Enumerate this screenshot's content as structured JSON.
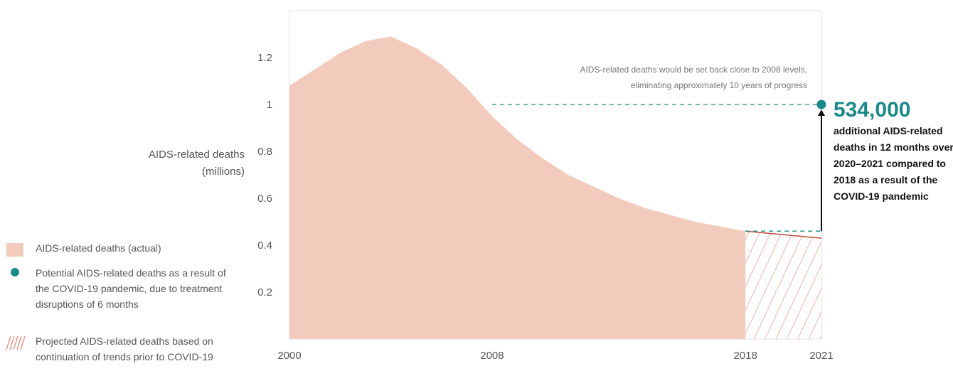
{
  "chart_data": {
    "type": "area",
    "ylabel_lines": [
      "AIDS-related deaths",
      "(millions)"
    ],
    "ylim": [
      0,
      1.4
    ],
    "xlim": [
      2000,
      2021
    ],
    "y_ticks": [
      "0.2",
      "0.4",
      "0.6",
      "0.8",
      "1",
      "1.2"
    ],
    "x_ticks": [
      "2000",
      "2008",
      "2018",
      "2021"
    ],
    "grid": false,
    "colors": {
      "actual": "#f2cbbd",
      "projected": "#e8897a",
      "potential": "#1a8a88",
      "arrow": "#111111"
    },
    "series": [
      {
        "name": "AIDS-related deaths (actual)",
        "x": [
          2000,
          2001,
          2002,
          2003,
          2004,
          2005,
          2006,
          2007,
          2008,
          2009,
          2010,
          2011,
          2012,
          2013,
          2014,
          2015,
          2016,
          2017,
          2018
        ],
        "values": [
          1.08,
          1.15,
          1.22,
          1.27,
          1.29,
          1.24,
          1.17,
          1.07,
          0.95,
          0.85,
          0.77,
          0.7,
          0.65,
          0.6,
          0.56,
          0.53,
          0.5,
          0.48,
          0.46
        ]
      },
      {
        "name": "Projected AIDS-related deaths based on continuation of trends prior to COVID-19",
        "x": [
          2018,
          2021
        ],
        "values": [
          0.46,
          0.43
        ]
      },
      {
        "name": "Potential AIDS-related deaths as a result of the COVID-19 pandemic, due to treatment disruptions of 6 months",
        "x": [
          2021
        ],
        "values": [
          1.0
        ]
      }
    ],
    "annotation": {
      "lines": [
        "AIDS-related deaths would be set back close to 2008 levels,",
        "eliminating approximately 10 years of progress"
      ]
    },
    "callout": {
      "value": "534,000",
      "lines": [
        "additional AIDS-related",
        "deaths in 12 months over",
        "2020–2021 compared to",
        "2018 as a result of the",
        "COVID-19 pandemic"
      ]
    },
    "legend": [
      {
        "key": "actual",
        "lines": [
          "AIDS-related deaths (actual)"
        ]
      },
      {
        "key": "potential",
        "lines": [
          "Potential AIDS-related deaths as a result of",
          "the COVID-19 pandemic, due to treatment",
          "disruptions of 6 months"
        ]
      },
      {
        "key": "projected",
        "lines": [
          "Projected AIDS-related deaths based on",
          "continuation of trends prior to COVID-19"
        ]
      }
    ]
  }
}
